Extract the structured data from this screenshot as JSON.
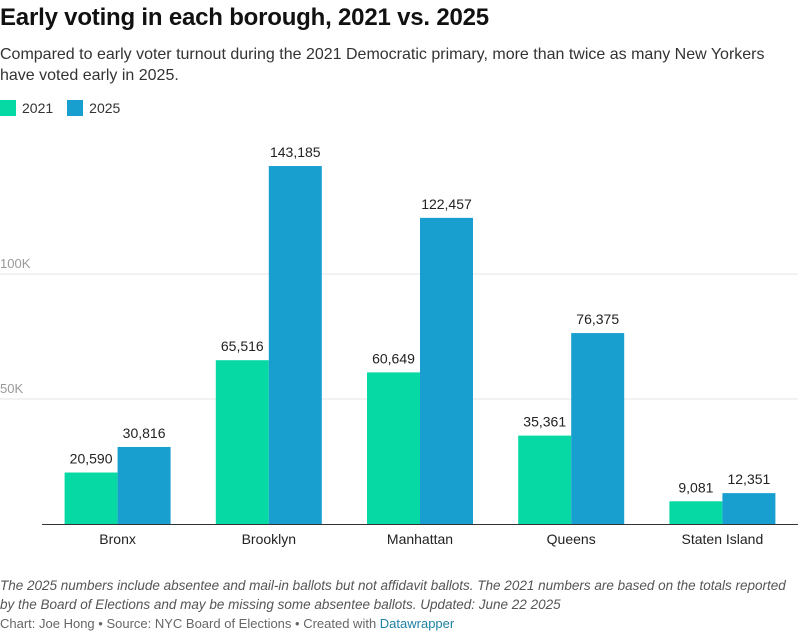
{
  "title": "Early voting in each borough, 2021 vs. 2025",
  "subtitle": "Compared to early voter turnout during the 2021 Democratic primary, more than twice as many New Yorkers have voted early in 2025.",
  "notes": "The 2025 numbers include absentee and mail-in ballots but not affidavit ballots. The 2021 numbers are based on the totals reported by the Board of Elections and may be missing some absentee ballots. Updated: June 22 2025",
  "credit": {
    "text": "Chart: Joe Hong • Source: NYC Board of Elections • Created with ",
    "link": "Datawrapper"
  },
  "colors": {
    "2021": "#06d9a3",
    "2025": "#189fcf"
  },
  "chart_data": {
    "type": "bar",
    "categories": [
      "Bronx",
      "Brooklyn",
      "Manhattan",
      "Queens",
      "Staten Island"
    ],
    "series": [
      {
        "name": "2021",
        "values": [
          20590,
          65516,
          60649,
          35361,
          9081
        ],
        "labels": [
          "20,590",
          "65,516",
          "60,649",
          "35,361",
          "9,081"
        ]
      },
      {
        "name": "2025",
        "values": [
          30816,
          143185,
          122457,
          76375,
          12351
        ],
        "labels": [
          "30,816",
          "143,185",
          "122,457",
          "76,375",
          "12,351"
        ]
      }
    ],
    "yticks": [
      {
        "value": 50000,
        "label": "50K"
      },
      {
        "value": 100000,
        "label": "100K"
      }
    ],
    "ylim": [
      0,
      160000
    ],
    "legend_position": "top-left",
    "grid": true
  }
}
